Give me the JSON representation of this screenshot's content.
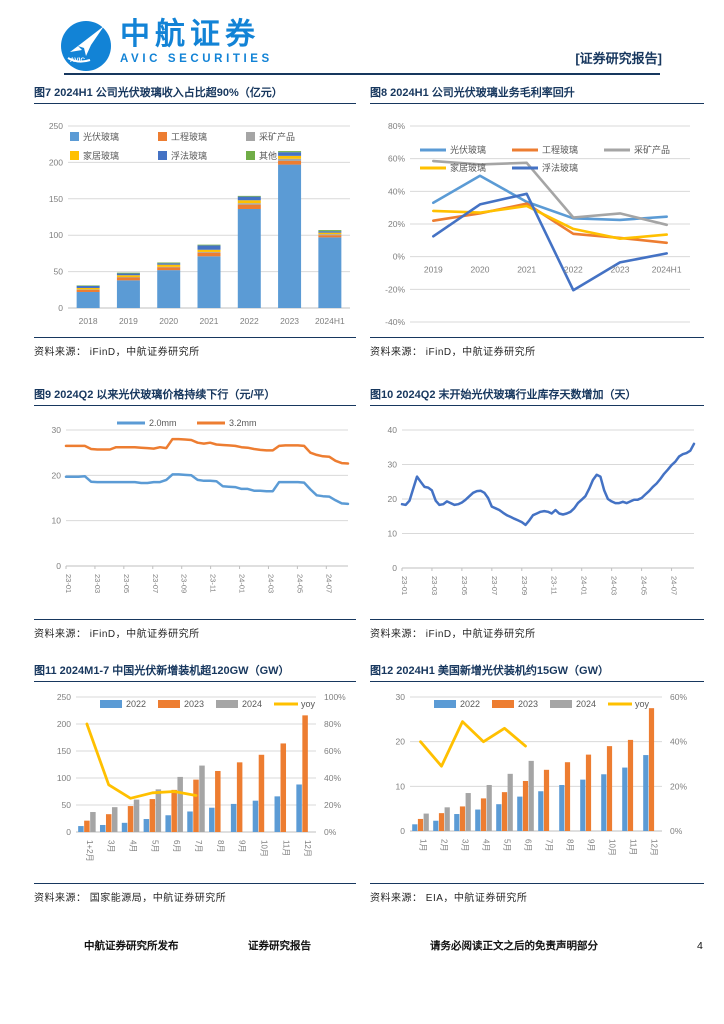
{
  "header": {
    "brand_cn": "中航证券",
    "brand_en": "AVIC  SECURITIES",
    "logo_text": "AVIC",
    "report_tag": "[证券研究报告]",
    "brand_color": "#1283D6",
    "navy_color": "#17375E"
  },
  "footer": {
    "publisher": "中航证券研究所发布",
    "center": "证券研究报告",
    "disclaimer": "请务必阅读正文之后的免责声明部分",
    "page": "4"
  },
  "chart_data": [
    {
      "id": "fig7",
      "type": "bar",
      "stacked": true,
      "title": "图7 2024H1 公司光伏玻璃收入占比超90%（亿元）",
      "source": "资料来源：  iFinD，中航证券研究所",
      "categories": [
        "2018",
        "2019",
        "2020",
        "2021",
        "2022",
        "2023",
        "2024H1"
      ],
      "series": [
        {
          "name": "光伏玻璃",
          "color": "#5B9BD5",
          "values": [
            22,
            38,
            52,
            71,
            136,
            197,
            97
          ]
        },
        {
          "name": "工程玻璃",
          "color": "#ED7D31",
          "values": [
            3,
            4,
            4,
            5,
            6,
            5,
            3
          ]
        },
        {
          "name": "采矿产品",
          "color": "#A5A5A5",
          "values": [
            0.5,
            0.5,
            0.5,
            1,
            2,
            3,
            1.5
          ]
        },
        {
          "name": "家居玻璃",
          "color": "#FFC000",
          "values": [
            2,
            2.5,
            3,
            3,
            4,
            4,
            2
          ]
        },
        {
          "name": "浮法玻璃",
          "color": "#4472C4",
          "values": [
            3,
            2.5,
            2,
            6,
            5,
            5,
            2
          ]
        },
        {
          "name": "其他",
          "color": "#70AD47",
          "values": [
            0.5,
            1,
            1,
            1,
            1,
            1.5,
            1.5
          ]
        }
      ],
      "ylim": [
        0,
        250
      ],
      "ystep": 50,
      "grid": true,
      "legend_position": "inside-top-left"
    },
    {
      "id": "fig8",
      "type": "line",
      "title": "图8 2024H1 公司光伏玻璃业务毛利率回升",
      "source": "资料来源：  iFinD，中航证券研究所",
      "categories": [
        "2019",
        "2020",
        "2021",
        "2022",
        "2023",
        "2024H1"
      ],
      "series": [
        {
          "name": "光伏玻璃",
          "color": "#5B9BD5",
          "values": [
            33,
            49.5,
            33.5,
            23.5,
            22.5,
            24.5
          ]
        },
        {
          "name": "工程玻璃",
          "color": "#ED7D31",
          "values": [
            22,
            26.5,
            32.5,
            14,
            11.5,
            8.5
          ]
        },
        {
          "name": "采矿产品",
          "color": "#A5A5A5",
          "values": [
            58.5,
            56.5,
            57.5,
            24,
            26.5,
            19.5
          ]
        },
        {
          "name": "家居玻璃",
          "color": "#FFC000",
          "values": [
            28,
            27,
            31,
            17,
            11,
            13.5
          ]
        },
        {
          "name": "浮法玻璃",
          "color": "#4472C4",
          "values": [
            12.5,
            32,
            38.5,
            -20.5,
            -3.5,
            2
          ]
        }
      ],
      "ylim": [
        -40,
        80
      ],
      "ystep": 20,
      "yfmt": "percent",
      "grid": true,
      "legend_position": "inside-top"
    },
    {
      "id": "fig9",
      "type": "line",
      "title": "图9 2024Q2 以来光伏玻璃价格持续下行（元/平）",
      "source": "资料来源：  iFinD，中航证券研究所",
      "x_ticks": [
        "23-01",
        "23-03",
        "23-05",
        "23-07",
        "23-09",
        "23-11",
        "24-01",
        "24-03",
        "24-05",
        "24-07"
      ],
      "series": [
        {
          "name": "2.0mm",
          "color": "#5B9BD5",
          "values": [
            19.7,
            19.7,
            19.7,
            19.8,
            18.6,
            18.5,
            18.5,
            18.5,
            18.5,
            18.5,
            18.5,
            18.5,
            18.3,
            18.3,
            18.5,
            18.5,
            19.0,
            20.2,
            20.2,
            20.1,
            20.0,
            19.0,
            18.8,
            18.8,
            18.7,
            17.6,
            17.5,
            17.4,
            17.0,
            17.0,
            16.6,
            16.6,
            16.5,
            16.5,
            18.5,
            18.5,
            18.5,
            18.5,
            18.4,
            16.9,
            15.6,
            15.4,
            15.3,
            14.5,
            13.8,
            13.7
          ]
        },
        {
          "name": "3.2mm",
          "color": "#ED7D31",
          "values": [
            26.5,
            26.5,
            26.5,
            26.5,
            25.8,
            25.7,
            25.7,
            25.7,
            26.2,
            26.2,
            26.2,
            26.2,
            26.1,
            26.0,
            25.9,
            26.2,
            26.0,
            28.0,
            28.0,
            27.9,
            27.8,
            27.2,
            27.0,
            27.2,
            26.8,
            26.7,
            26.6,
            26.5,
            26.2,
            26.1,
            25.8,
            25.6,
            25.5,
            25.5,
            26.5,
            26.6,
            26.6,
            26.6,
            26.5,
            25.0,
            24.5,
            24.2,
            24.1,
            23.2,
            22.7,
            22.6
          ]
        }
      ],
      "ylim": [
        0,
        30
      ],
      "ystep": 10,
      "grid": true,
      "legend_position": "top-center"
    },
    {
      "id": "fig10",
      "type": "line",
      "title": "图10 2024Q2 末开始光伏玻璃行业库存天数增加（天）",
      "source": "资料来源：  iFinD，中航证券研究所",
      "x_ticks": [
        "23-01",
        "23-03",
        "23-05",
        "23-07",
        "23-09",
        "23-11",
        "24-01",
        "24-03",
        "24-05",
        "24-07"
      ],
      "series": [
        {
          "name": "",
          "color": "#4472C4",
          "values": [
            18.5,
            18.3,
            19.5,
            23,
            26.5,
            25,
            23.5,
            23.3,
            22.5,
            19.5,
            18.3,
            18.5,
            19.3,
            18.8,
            18.3,
            18.5,
            19,
            19.8,
            20.8,
            21.8,
            22.3,
            22.4,
            21.8,
            20.3,
            17.8,
            17.3,
            16.8,
            16,
            15.3,
            14.8,
            14.3,
            13.8,
            13.3,
            12.5,
            13.8,
            15.3,
            15.8,
            16.3,
            16.5,
            16.3,
            15.8,
            16.8,
            15.8,
            15.5,
            15.8,
            16.3,
            17.3,
            18.8,
            19.8,
            20.8,
            23,
            25.5,
            27,
            26.5,
            22.5,
            20,
            19.3,
            18.8,
            18.8,
            19.2,
            18.8,
            19.3,
            19.8,
            19.8,
            20.3,
            21.3,
            22.3,
            23.5,
            24.5,
            25.8,
            27.3,
            28.5,
            29.8,
            30.8,
            32.3,
            33,
            33.3,
            34,
            36
          ]
        }
      ],
      "ylim": [
        0,
        40
      ],
      "ystep": 10,
      "grid": true,
      "legend_position": "none"
    },
    {
      "id": "fig11",
      "type": "bar",
      "stacked": false,
      "title": "图11 2024M1-7 中国光伏新增装机超120GW（GW）",
      "source": "资料来源：  国家能源局，中航证券研究所",
      "categories": [
        "1+2月",
        "3月",
        "4月",
        "5月",
        "6月",
        "7月",
        "8月",
        "9月",
        "10月",
        "11月",
        "12月"
      ],
      "series": [
        {
          "name": "2022",
          "color": "#5B9BD5",
          "values": [
            11,
            13,
            17,
            24,
            31,
            38,
            45,
            52,
            58,
            66,
            88
          ]
        },
        {
          "name": "2023",
          "color": "#ED7D31",
          "values": [
            21,
            33,
            48,
            61,
            78,
            97,
            113,
            129,
            143,
            164,
            216
          ]
        },
        {
          "name": "2024",
          "color": "#A5A5A5",
          "values": [
            37,
            46,
            60,
            79,
            102,
            123,
            null,
            null,
            null,
            null,
            null
          ]
        }
      ],
      "line_series": {
        "name": "yoy",
        "color": "#FFC000",
        "values": [
          80,
          35,
          25,
          29,
          30,
          27,
          null,
          null,
          null,
          null,
          null
        ]
      },
      "ylim": [
        0,
        250
      ],
      "ystep": 50,
      "y2lim": [
        0,
        100
      ],
      "y2step": 20,
      "y2fmt": "percent",
      "grid": true,
      "legend_position": "top-center"
    },
    {
      "id": "fig12",
      "type": "bar",
      "stacked": false,
      "title": "图12 2024H1 美国新增光伏装机约15GW（GW）",
      "source": "资料来源：  EIA，中航证券研究所",
      "categories": [
        "1月",
        "2月",
        "3月",
        "4月",
        "5月",
        "6月",
        "7月",
        "8月",
        "9月",
        "10月",
        "11月",
        "12月"
      ],
      "series": [
        {
          "name": "2022",
          "color": "#5B9BD5",
          "values": [
            1.5,
            2.3,
            3.8,
            4.8,
            6,
            7.7,
            8.9,
            10.3,
            11.5,
            12.7,
            14.2,
            17
          ]
        },
        {
          "name": "2023",
          "color": "#ED7D31",
          "values": [
            2.7,
            4,
            5.5,
            7.3,
            8.7,
            11.2,
            13.7,
            15.4,
            17.1,
            19,
            20.4,
            27.5
          ]
        },
        {
          "name": "2024",
          "color": "#A5A5A5",
          "values": [
            3.9,
            5.3,
            8.5,
            10.3,
            12.8,
            15.7,
            null,
            null,
            null,
            null,
            null,
            null
          ]
        }
      ],
      "line_series": {
        "name": "yoy",
        "color": "#FFC000",
        "values": [
          40,
          29,
          49,
          40,
          46,
          38,
          null,
          null,
          null,
          null,
          null,
          null
        ]
      },
      "ylim": [
        0,
        30
      ],
      "ystep": 10,
      "y2lim": [
        0,
        60
      ],
      "y2step": 20,
      "y2fmt": "percent",
      "grid": true,
      "legend_position": "top-center"
    }
  ]
}
